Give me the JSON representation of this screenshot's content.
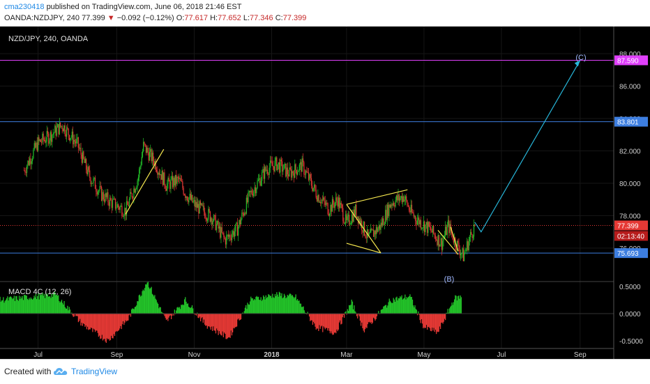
{
  "header": {
    "user": "cma230418",
    "published_text": "published on TradingView.com, June 06, 2018 21:46 EST",
    "symbol": "OANDA:NZDJPY, 240",
    "last": "77.399",
    "change": "−0.092 (−0.12%)",
    "o_label": "O:",
    "o_value": "77.617",
    "h_label": "H:",
    "h_value": "77.652",
    "l_label": "L:",
    "l_value": "77.346",
    "c_label": "C:",
    "c_value": "77.399"
  },
  "chart": {
    "legend": "NZD/JPY, 240, OANDA",
    "price_ticks": [
      "88.000",
      "86.000",
      "84.000",
      "82.000",
      "80.000",
      "78.000",
      "76.000"
    ],
    "price_badges": {
      "magenta": "87.590",
      "blue_upper": "83.801",
      "last": "77.399",
      "countdown": "02:13:40",
      "blue_lower": "75.693"
    },
    "wave_labels": {
      "c": "(C)",
      "b": "(B)"
    },
    "x_ticks": [
      "Jul",
      "Sep",
      "Nov",
      "2018",
      "Mar",
      "May",
      "Jul",
      "Sep"
    ],
    "colors": {
      "magenta": "#e040fb",
      "blue": "#3d7ee0",
      "last": "#e53935",
      "arrow": "#27b6d9",
      "pattern": "#f7e94f",
      "up": "#23c229",
      "down": "#e53935"
    }
  },
  "chart_data": {
    "type": "candlestick",
    "symbol": "NZD/JPY",
    "timeframe": "240",
    "x_range": [
      "2017-06",
      "2018-09"
    ],
    "ylim": [
      75,
      88.5
    ],
    "close_path": [
      [
        "2017-06-20",
        80.8
      ],
      [
        "2017-07-01",
        82.5
      ],
      [
        "2017-07-10",
        82.9
      ],
      [
        "2017-07-20",
        83.6
      ],
      [
        "2017-08-01",
        82.4
      ],
      [
        "2017-08-10",
        80.5
      ],
      [
        "2017-08-20",
        79.3
      ],
      [
        "2017-08-28",
        78.8
      ],
      [
        "2017-09-08",
        78.3
      ],
      [
        "2017-09-18",
        80.4
      ],
      [
        "2017-09-22",
        82.3
      ],
      [
        "2017-10-01",
        81.3
      ],
      [
        "2017-10-10",
        79.9
      ],
      [
        "2017-10-20",
        80.2
      ],
      [
        "2017-10-25",
        79.4
      ],
      [
        "2017-11-01",
        78.7
      ],
      [
        "2017-11-15",
        77.9
      ],
      [
        "2017-11-25",
        76.5
      ],
      [
        "2017-12-05",
        77.2
      ],
      [
        "2017-12-15",
        79.3
      ],
      [
        "2017-12-28",
        80.9
      ],
      [
        "2018-01-05",
        81.2
      ],
      [
        "2018-01-15",
        80.6
      ],
      [
        "2018-01-25",
        81.1
      ],
      [
        "2018-02-05",
        79.4
      ],
      [
        "2018-02-15",
        78.4
      ],
      [
        "2018-02-22",
        79.0
      ],
      [
        "2018-03-01",
        77.5
      ],
      [
        "2018-03-08",
        78.3
      ],
      [
        "2018-03-18",
        76.6
      ],
      [
        "2018-03-28",
        77.4
      ],
      [
        "2018-04-05",
        78.8
      ],
      [
        "2018-04-15",
        79.2
      ],
      [
        "2018-04-20",
        78.3
      ],
      [
        "2018-04-25",
        77.8
      ],
      [
        "2018-05-05",
        77.2
      ],
      [
        "2018-05-15",
        76.3
      ],
      [
        "2018-05-20",
        77.4
      ],
      [
        "2018-05-25",
        76.5
      ],
      [
        "2018-06-01",
        75.5
      ],
      [
        "2018-06-06",
        76.6
      ],
      [
        "2018-06-10",
        77.4
      ]
    ],
    "horizontal_levels": [
      87.59,
      83.801,
      77.399,
      75.693
    ],
    "projection": [
      [
        "2018-06-10",
        77.6
      ],
      [
        "2018-06-15",
        77.0
      ],
      [
        "2018-09-01",
        87.59
      ]
    ],
    "indicator": {
      "name": "MACD 4C (12, 26)",
      "y_ticks": [
        0.5,
        0.0,
        -0.5
      ]
    }
  }
}
